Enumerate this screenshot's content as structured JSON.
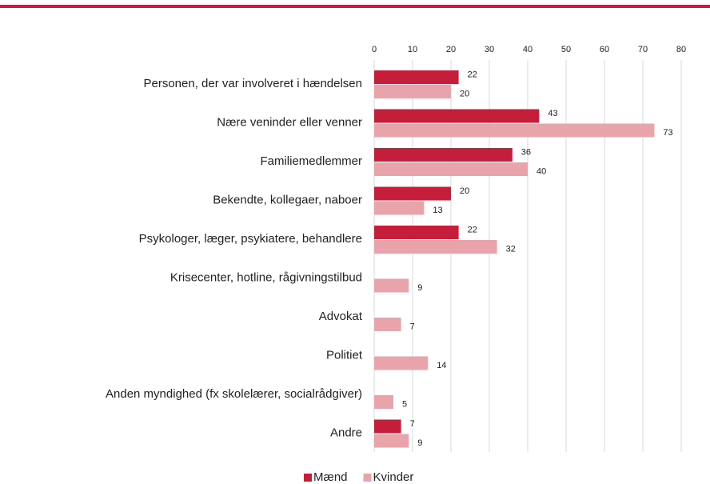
{
  "chart_data": {
    "type": "hbar",
    "categories": [
      "Personen, der var involveret i hændelsen",
      "Nære veninder eller venner",
      "Familiemedlemmer",
      "Bekendte, kollegaer, naboer",
      "Psykologer, læger, psykiatere, behandlere",
      "Krisecenter, hotline, rågivningstilbud",
      "Advokat",
      "Politiet",
      "Anden myndighed (fx skolelærer, socialrådgiver)",
      "Andre"
    ],
    "series": [
      {
        "name": "Mænd",
        "color": "#c41e3a",
        "values": [
          22,
          43,
          36,
          20,
          22,
          null,
          null,
          null,
          null,
          7
        ]
      },
      {
        "name": "Kvinder",
        "color": "#e8a3ab",
        "values": [
          20,
          73,
          40,
          13,
          32,
          9,
          7,
          14,
          5,
          9
        ]
      }
    ],
    "xlim": [
      0,
      80
    ],
    "xticks": [
      0,
      10,
      20,
      30,
      40,
      50,
      60,
      70,
      80
    ],
    "grid": true,
    "legend": "bottom"
  }
}
